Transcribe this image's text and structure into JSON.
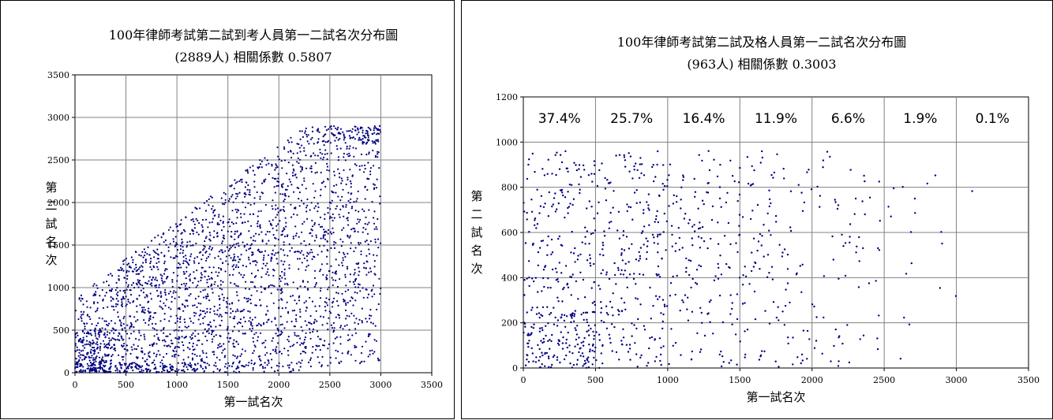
{
  "chart_data": [
    {
      "type": "scatter",
      "title": "100年律師考試第二試到考人員第一二試名次分布圖",
      "subtitle": "(2889人) 相關係數 0.5807",
      "xlabel": "第一試名次",
      "ylabel": "第二試名次",
      "xlim": [
        0,
        3500
      ],
      "ylim": [
        0,
        3500
      ],
      "xticks": [
        0,
        500,
        1000,
        1500,
        2000,
        2500,
        3000,
        3500
      ],
      "yticks": [
        0,
        500,
        1000,
        1500,
        2000,
        2500,
        3000,
        3500
      ],
      "grid": true,
      "point_color": "#000080",
      "n_points": 2889,
      "correlation": 0.5807,
      "x_max": 3000,
      "y_max": 2900
    },
    {
      "type": "scatter",
      "title": "100年律師考試第二試及格人員第一二試名次分布圖",
      "subtitle": "(963人) 相關係數 0.3003",
      "xlabel": "第一試名次",
      "ylabel": "第二試名次",
      "xlim": [
        0,
        3500
      ],
      "ylim": [
        0,
        1200
      ],
      "xticks": [
        0,
        500,
        1000,
        1500,
        2000,
        2500,
        3000,
        3500
      ],
      "yticks": [
        0,
        200,
        400,
        600,
        800,
        1000,
        1200
      ],
      "grid": true,
      "point_color": "#000080",
      "n_points": 963,
      "correlation": 0.3003,
      "band_labels": [
        "37.4%",
        "25.7%",
        "16.4%",
        "11.9%",
        "6.6%",
        "1.9%",
        "0.1%"
      ],
      "band_shares": [
        0.374,
        0.257,
        0.164,
        0.119,
        0.066,
        0.019,
        0.001
      ],
      "band_width": 500,
      "y_max": 963
    }
  ]
}
